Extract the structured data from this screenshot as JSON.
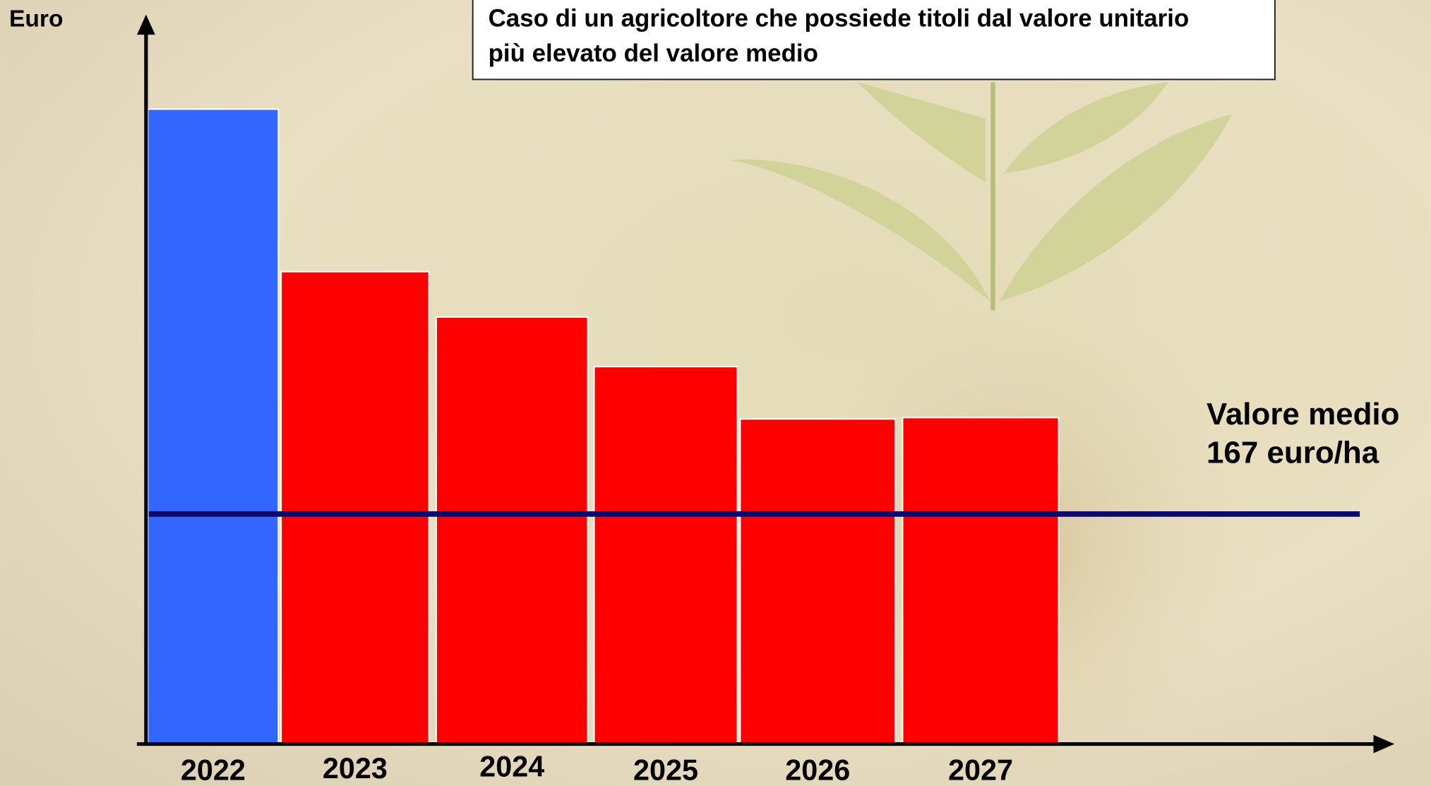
{
  "chart_data": {
    "type": "bar",
    "title_lines": [
      "Caso di un agricoltore che possiede titoli dal valore unitario",
      "più elevato del valore medio"
    ],
    "y_label": "Euro",
    "categories": [
      "2022",
      "2023",
      "2024",
      "2025",
      "2026",
      "2027"
    ],
    "values": [
      461,
      343,
      310,
      274,
      236,
      237
    ],
    "colors": [
      "#3366ff",
      "#ff0000",
      "#ff0000",
      "#ff0000",
      "#ff0000",
      "#ff0000"
    ],
    "ylim": [
      0,
      527
    ],
    "reference_line": {
      "value": 167,
      "color": "#0a0a6e",
      "label_lines": [
        "Valore medio",
        "167 euro/ha"
      ]
    }
  }
}
